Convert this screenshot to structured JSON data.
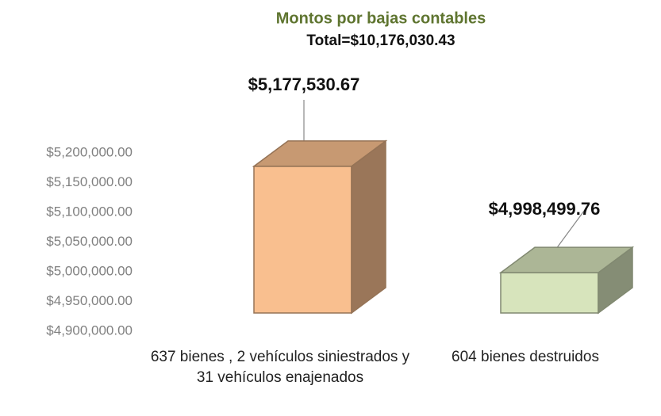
{
  "chart_data": {
    "type": "bar3d",
    "title": "Montos por bajas contables",
    "subtitle": "Total=$10,176,030.43",
    "categories": [
      "637 bienes , 2 vehículos siniestrados y 31 vehículos enajenados",
      "604 bienes destruidos"
    ],
    "values": [
      5177530.67,
      4998499.76
    ],
    "value_labels": [
      "$5,177,530.67",
      "$4,998,499.76"
    ],
    "colors": [
      "#f9bf8f",
      "#d7e4bc"
    ],
    "ylim": [
      4900000,
      5200000
    ],
    "yticks": [
      {
        "value": 4900000,
        "label": "$4,900,000.00"
      },
      {
        "value": 4950000,
        "label": "$4,950,000.00"
      },
      {
        "value": 5000000,
        "label": "$5,000,000.00"
      },
      {
        "value": 5050000,
        "label": "$5,050,000.00"
      },
      {
        "value": 5100000,
        "label": "$5,100,000.00"
      },
      {
        "value": 5150000,
        "label": "$5,150,000.00"
      },
      {
        "value": 5200000,
        "label": "$5,200,000.00"
      }
    ],
    "grid": false
  }
}
